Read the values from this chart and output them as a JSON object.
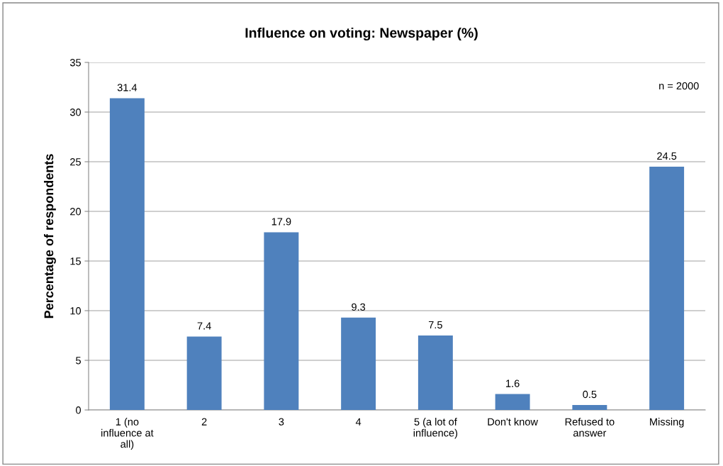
{
  "chart_data": {
    "type": "bar",
    "title": "Influence on voting: Newspaper (%)",
    "ylabel": "Percentage of respondents",
    "categories": [
      "1 (no\ninfluence at\nall)",
      "2",
      "3",
      "4",
      "5 (a lot of\ninfluence)",
      "Don't know",
      "Refused to\nanswer",
      "Missing"
    ],
    "values": [
      31.4,
      7.4,
      17.9,
      9.3,
      7.5,
      1.6,
      0.5,
      24.5
    ],
    "color": "#4f81bd",
    "ylim": [
      0,
      35
    ],
    "yticks": [
      0,
      5,
      10,
      15,
      20,
      25,
      30,
      35
    ],
    "grid": "y",
    "data_labels": true,
    "legend": false,
    "annotations": [
      "n = 2000"
    ]
  }
}
